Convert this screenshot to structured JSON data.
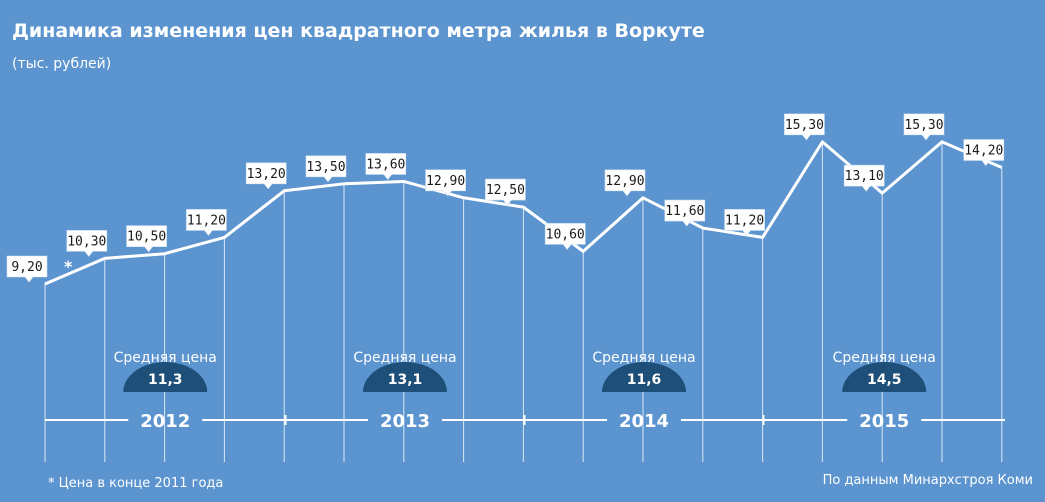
{
  "colors": {
    "background": "#5b94cf",
    "line": "#ffffff",
    "label_box": "#ffffff",
    "dome": "#1d4f78"
  },
  "chart_data": {
    "type": "line",
    "title": "Динамика изменения цен квадратного метра жилья в Воркуте",
    "subtitle": "(тыс. рублей)",
    "x": [
      "",
      "",
      "",
      "",
      "",
      "",
      "",
      "",
      "",
      "",
      "",
      "",
      "",
      "",
      "",
      "",
      ""
    ],
    "series": [
      {
        "values": [
          9.2,
          10.3,
          10.5,
          11.2,
          13.2,
          13.5,
          13.6,
          12.9,
          12.5,
          10.6,
          12.9,
          11.6,
          11.2,
          15.3,
          13.1,
          15.3,
          14.2
        ]
      }
    ],
    "data_labels": [
      "9,20",
      "10,30",
      "10,50",
      "11,20",
      "13,20",
      "13,50",
      "13,60",
      "12,90",
      "12,50",
      "10,60",
      "12,90",
      "11,60",
      "11,20",
      "15,30",
      "13,10",
      "15,30",
      "14,20"
    ],
    "first_point_marker": "*",
    "years": [
      "2012",
      "2013",
      "2014",
      "2015"
    ],
    "averages": [
      {
        "caption": "Средняя цена",
        "value": "11,3"
      },
      {
        "caption": "Средняя цена",
        "value": "13,1"
      },
      {
        "caption": "Средняя цена",
        "value": "11,6"
      },
      {
        "caption": "Средняя цена",
        "value": "14,5"
      }
    ],
    "grid": false,
    "legend": "none"
  },
  "footnote": "* Цена в конце 2011 года",
  "source": "По данным Минархстроя Коми"
}
